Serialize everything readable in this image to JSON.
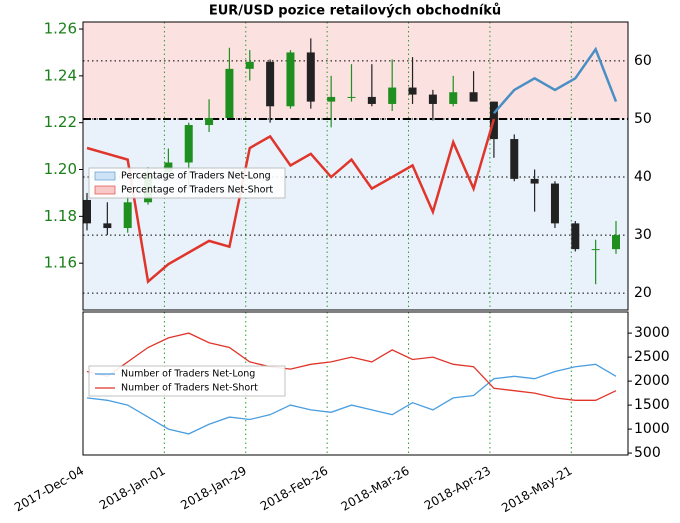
{
  "chart_data": [
    {
      "type": "candlestick",
      "title": "EUR/USD pozice retailových obchodníků",
      "open": [
        1.187,
        1.177,
        1.175,
        1.186,
        1.199,
        1.203,
        1.219,
        1.222,
        1.243,
        1.246,
        1.227,
        1.25,
        1.229,
        1.231,
        1.231,
        1.228,
        1.235,
        1.232,
        1.228,
        1.233,
        1.229,
        1.213,
        1.196,
        1.194,
        1.177,
        1.166,
        1.166
      ],
      "high": [
        1.19,
        1.186,
        1.189,
        1.201,
        1.209,
        1.22,
        1.23,
        1.252,
        1.251,
        1.247,
        1.251,
        1.256,
        1.24,
        1.245,
        1.245,
        1.247,
        1.248,
        1.234,
        1.24,
        1.242,
        1.229,
        1.215,
        1.2,
        1.195,
        1.178,
        1.17,
        1.178
      ],
      "low": [
        1.174,
        1.172,
        1.173,
        1.185,
        1.195,
        1.192,
        1.216,
        1.222,
        1.238,
        1.22,
        1.226,
        1.226,
        1.218,
        1.229,
        1.227,
        1.225,
        1.228,
        1.221,
        1.227,
        1.229,
        1.205,
        1.195,
        1.182,
        1.175,
        1.165,
        1.151,
        1.164
      ],
      "close": [
        1.177,
        1.175,
        1.186,
        1.199,
        1.203,
        1.219,
        1.222,
        1.243,
        1.246,
        1.227,
        1.25,
        1.229,
        1.231,
        1.231,
        1.228,
        1.235,
        1.232,
        1.228,
        1.233,
        1.229,
        1.213,
        1.196,
        1.194,
        1.177,
        1.166,
        1.166,
        1.172
      ],
      "up_color": "#1f8f1f",
      "down_color": "#222222",
      "ylim": [
        1.14,
        1.263
      ],
      "yticks": [
        1.16,
        1.18,
        {
          "value": 1.2,
          "label": "1.20"
        },
        1.22,
        1.24,
        1.26
      ],
      "y2lim": [
        17.1,
        66.7
      ],
      "y2ticks": [
        20,
        30,
        40,
        50,
        60
      ],
      "reference_line": 50,
      "legend": "center left",
      "grid": true,
      "series": [
        {
          "name": "Percentage of Traders Net-Long",
          "color": "#4a8fc4",
          "band_color": "#cfe3f7",
          "axis": "y2",
          "values": [
            null,
            null,
            null,
            null,
            null,
            null,
            null,
            null,
            null,
            null,
            null,
            null,
            null,
            null,
            null,
            null,
            null,
            null,
            null,
            null,
            51,
            55,
            57,
            55,
            57,
            62,
            53
          ]
        },
        {
          "name": "Percentage of Traders Net-Short",
          "color": "#e0352b",
          "band_color": "#f9c9c9",
          "axis": "y2",
          "values": [
            45,
            44,
            43,
            22,
            25,
            27,
            29,
            28,
            45,
            47,
            42,
            44,
            40,
            43,
            38,
            40,
            42,
            34,
            46,
            38,
            50,
            null,
            null,
            null,
            null,
            null,
            null
          ]
        }
      ]
    },
    {
      "type": "line",
      "categories": [
        "2017-Dec-04",
        null,
        null,
        null,
        "2018-Jan-01",
        null,
        null,
        null,
        "2018-Jan-29",
        null,
        null,
        null,
        "2018-Feb-26",
        null,
        null,
        null,
        "2018-Mar-26",
        null,
        null,
        null,
        "2018-Apr-23",
        null,
        null,
        null,
        "2018-May-21",
        null,
        null
      ],
      "ylim": [
        460,
        3440
      ],
      "yticks": [
        500,
        1000,
        1500,
        2000,
        2500,
        3000
      ],
      "legend": "upper left",
      "grid": true,
      "series": [
        {
          "name": "Number of Traders Net-Long",
          "color": "#4a9ee0",
          "values": [
            1650,
            1600,
            1500,
            1250,
            1000,
            900,
            1100,
            1250,
            1200,
            1300,
            1500,
            1400,
            1350,
            1500,
            1400,
            1300,
            1550,
            1400,
            1650,
            1700,
            2050,
            2100,
            2050,
            2200,
            2300,
            2350,
            2100
          ]
        },
        {
          "name": "Number of Traders Net-Short",
          "color": "#e0352b",
          "values": [
            2200,
            2100,
            2400,
            2700,
            2900,
            3000,
            2800,
            2700,
            2400,
            2300,
            2250,
            2350,
            2400,
            2500,
            2400,
            2650,
            2450,
            2500,
            2350,
            2300,
            1850,
            1800,
            1750,
            1650,
            1600,
            1600,
            1800
          ]
        }
      ]
    }
  ]
}
